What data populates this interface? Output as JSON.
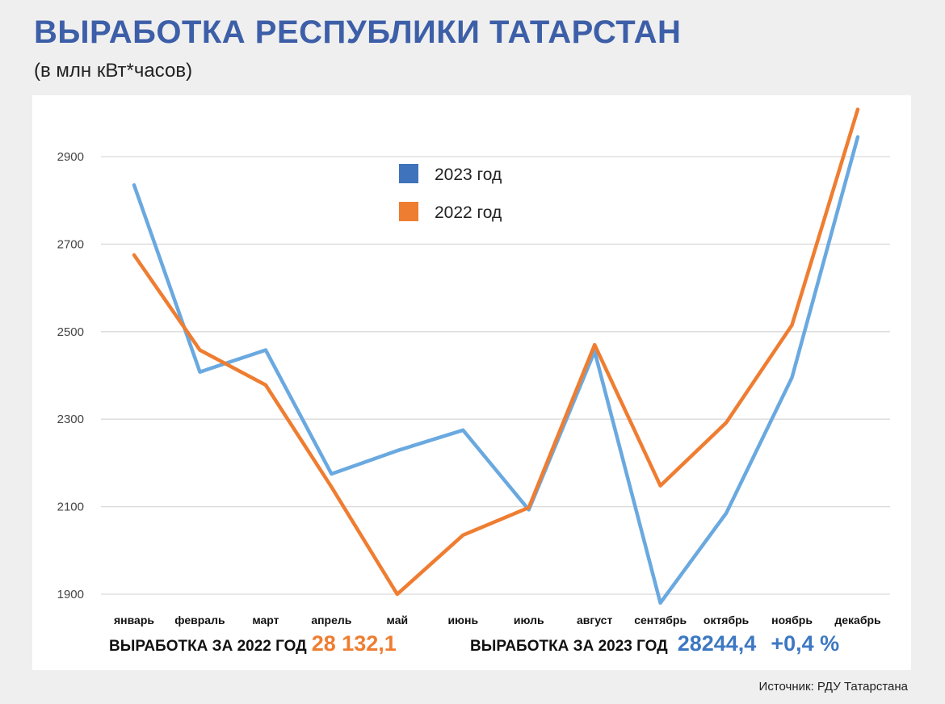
{
  "header": {
    "title": "ВЫРАБОТКА РЕСПУБЛИКИ ТАТАРСТАН",
    "subtitle": "(в млн кВт*часов)"
  },
  "summary": {
    "label_2022": "ВЫРАБОТКА ЗА 2022 ГОД",
    "value_2022": "28 132,1",
    "label_2023": "ВЫРАБОТКА ЗА 2023 ГОД",
    "value_2023": "28244,4",
    "change_2023": "+0,4 %"
  },
  "source": "Источник: РДУ Татарстана",
  "chart_data": {
    "type": "line",
    "categories": [
      "январь",
      "февраль",
      "март",
      "апрель",
      "май",
      "июнь",
      "июль",
      "август",
      "сентябрь",
      "октябрь",
      "ноябрь",
      "декабрь"
    ],
    "series": [
      {
        "name": "2023 год",
        "color": "#6aa9e0",
        "legend_color": "#3f73bc",
        "values": [
          2835,
          2408,
          2458,
          2175,
          2228,
          2275,
          2093,
          2455,
          1880,
          2085,
          2395,
          2945
        ]
      },
      {
        "name": "2022 год",
        "color": "#ef7d31",
        "legend_color": "#ef7d31",
        "values": [
          2675,
          2458,
          2378,
          2145,
          1900,
          2035,
          2098,
          2470,
          2148,
          2292,
          2515,
          3008
        ]
      }
    ],
    "yticks": [
      1900,
      2100,
      2300,
      2500,
      2700,
      2900
    ],
    "ylim": [
      1900,
      3000
    ],
    "grid": true,
    "legend_position": "top-center"
  }
}
